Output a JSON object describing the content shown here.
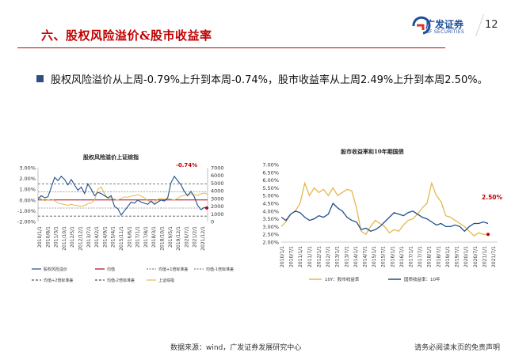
{
  "header": {
    "title": "六、股权风险溢价&股市收益率",
    "logo_cn": "广发证券",
    "logo_en": "GF SECURITIES",
    "page_number": "12"
  },
  "bullet": {
    "text": "股权风险溢价从上周-0.79%上升到本周-0.74%，股市收益率从上周2.49%上升到本周2.50%。"
  },
  "footer": {
    "source": "数据来源：wind，广发证券发展研究中心",
    "disclaimer": "请务必阅读末页的免责声明"
  },
  "colors": {
    "brand_red": "#c00000",
    "brand_blue": "#1d4f9c",
    "series_blue": "#1f4e8c",
    "series_gold": "#e6b74c",
    "dark_red": "#b00020"
  },
  "chart_data": [
    {
      "type": "line",
      "title": "股权风险溢价上证综指",
      "annotation": "-0.74%",
      "x_ticks": [
        "2010/1/1",
        "2010/8/1",
        "2011/3/1",
        "2011/10/1",
        "2012/5/1",
        "2012/12/1",
        "2013/7/1",
        "2014/2/1",
        "2014/9/1",
        "2015/4/1",
        "2015/11/1",
        "2016/6/1",
        "2017/1/1",
        "2017/8/1",
        "2018/3/1",
        "2018/10/1",
        "2019/5/1",
        "2019/12/1",
        "2020/7/1",
        "2021/2/1",
        "2021/12/1"
      ],
      "left_axis": {
        "min": -0.02,
        "max": 0.03,
        "ticks": [
          "3.00%",
          "2.00%",
          "1.00%",
          "0.00%",
          "-1.00%",
          "-2.00%"
        ]
      },
      "right_axis": {
        "min": 0,
        "max": 7000,
        "ticks": [
          "7000",
          "6000",
          "5000",
          "4000",
          "3000",
          "2000",
          "1000",
          "0"
        ]
      },
      "series": [
        {
          "name": "股权风险溢价",
          "axis": "left",
          "style": "solid",
          "values": [
            0.001,
            0.004,
            0.002,
            0.003,
            0.012,
            0.021,
            0.018,
            0.022,
            0.019,
            0.014,
            0.019,
            0.014,
            0.009,
            0.012,
            0.006,
            0.015,
            0.01,
            0.004,
            0.007,
            0.006,
            0.004,
            0.002,
            0.004,
            -0.006,
            -0.008,
            -0.014,
            -0.01,
            -0.006,
            -0.002,
            -0.003,
            0.0,
            -0.002,
            -0.003,
            -0.004,
            -0.001,
            -0.004,
            -0.002,
            0.0,
            -0.001,
            0.002,
            0.016,
            0.022,
            0.018,
            0.014,
            0.008,
            0.004,
            0.008,
            0.003,
            -0.005,
            -0.009,
            -0.007,
            -0.0074
          ]
        },
        {
          "name": "均值",
          "axis": "left",
          "style": "solid",
          "values": [
            0.0
          ]
        },
        {
          "name": "均值+1倍标准差",
          "axis": "left",
          "style": "dashed",
          "values": [
            0.0075
          ]
        },
        {
          "name": "均值-1倍标准差",
          "axis": "left",
          "style": "dashed",
          "values": [
            -0.0075
          ]
        },
        {
          "name": "均值+2倍标准差",
          "axis": "left",
          "style": "dashed",
          "values": [
            0.015
          ]
        },
        {
          "name": "均值-2倍标准差",
          "axis": "left",
          "style": "dashed",
          "values": [
            -0.015
          ]
        },
        {
          "name": "上证综指",
          "axis": "right",
          "style": "solid",
          "values": [
            3200,
            2900,
            2700,
            2800,
            2900,
            2700,
            2400,
            2300,
            2200,
            2100,
            2250,
            2100,
            2050,
            2000,
            2100,
            2300,
            2400,
            2800,
            4200,
            4500,
            3600,
            3000,
            3100,
            2900,
            2800,
            3000,
            3200,
            3150,
            3300,
            3400,
            3500,
            3300,
            3100,
            2700,
            2600,
            2500,
            2900,
            3000,
            2900,
            3000,
            2900,
            2800,
            3000,
            3300,
            3400,
            3500,
            3600,
            3500,
            3400,
            3600,
            3700,
            3550
          ]
        }
      ],
      "legend": [
        "股权风险溢价",
        "均值",
        "均值+1倍标准差",
        "均值-1倍标准差",
        "均值+2倍标准差",
        "均值-2倍标准差",
        "上证综指"
      ]
    },
    {
      "type": "line",
      "title": "股市收益率和10年期国债",
      "annotation": "2.50%",
      "x_ticks": [
        "2010/1/1",
        "2010/7/1",
        "2011/1/1",
        "2011/7/1",
        "2012/1/1",
        "2012/7/1",
        "2013/1/1",
        "2013/7/1",
        "2014/1/1",
        "2014/7/1",
        "2015/1/1",
        "2015/7/1",
        "2016/1/1",
        "2016/7/1",
        "2017/1/1",
        "2017/7/1",
        "2018/1/1",
        "2018/7/1",
        "2019/1/1",
        "2019/7/1",
        "2020/1/1",
        "2020/7/1",
        "2021/1/1",
        "2021/7/1"
      ],
      "y_axis": {
        "min": 0.02,
        "max": 0.07,
        "ticks": [
          "7.00%",
          "6.50%",
          "6.00%",
          "5.50%",
          "5.00%",
          "4.50%",
          "4.00%",
          "3.50%",
          "3.00%",
          "2.50%",
          "2.00%"
        ]
      },
      "series": [
        {
          "name": "10Y：股市收益率",
          "color": "gold",
          "values": [
            0.03,
            0.033,
            0.038,
            0.04,
            0.045,
            0.058,
            0.05,
            0.055,
            0.052,
            0.054,
            0.05,
            0.055,
            0.05,
            0.052,
            0.054,
            0.053,
            0.042,
            0.027,
            0.025,
            0.03,
            0.034,
            0.032,
            0.03,
            0.026,
            0.028,
            0.027,
            0.031,
            0.034,
            0.035,
            0.038,
            0.042,
            0.045,
            0.058,
            0.05,
            0.046,
            0.037,
            0.036,
            0.034,
            0.032,
            0.03,
            0.027,
            0.024,
            0.026,
            0.0249,
            0.025
          ]
        },
        {
          "name": "国债收益率：10年",
          "color": "blue",
          "values": [
            0.036,
            0.034,
            0.038,
            0.04,
            0.039,
            0.036,
            0.034,
            0.035,
            0.037,
            0.036,
            0.038,
            0.045,
            0.042,
            0.04,
            0.036,
            0.034,
            0.033,
            0.028,
            0.029,
            0.027,
            0.028,
            0.03,
            0.033,
            0.036,
            0.039,
            0.038,
            0.037,
            0.039,
            0.04,
            0.038,
            0.036,
            0.035,
            0.033,
            0.031,
            0.032,
            0.03,
            0.03,
            0.031,
            0.03,
            0.027,
            0.03,
            0.032,
            0.032,
            0.033,
            0.032
          ]
        }
      ],
      "legend": [
        "10Y：股市收益率",
        "国债收益率：10年"
      ]
    }
  ]
}
